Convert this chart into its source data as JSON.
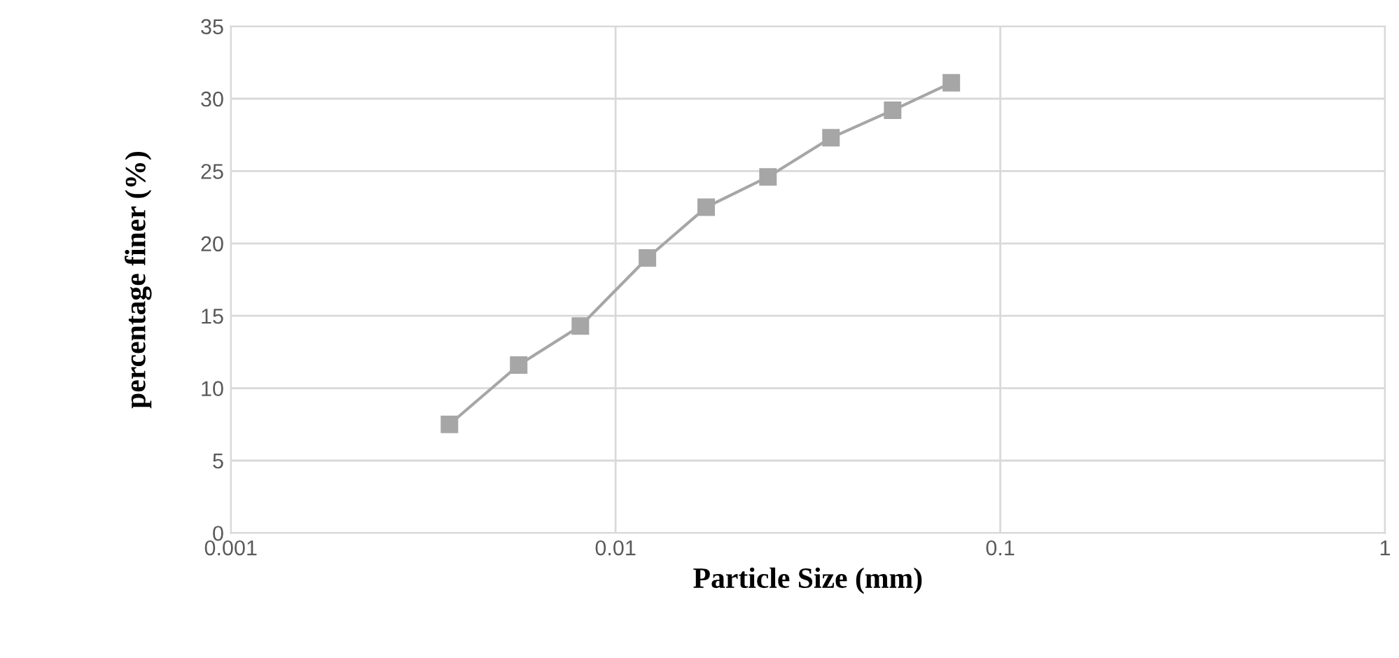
{
  "chart_data": {
    "type": "line",
    "xlabel": "Particle Size (mm)",
    "ylabel": "percentage finer (%)",
    "x": [
      0.0037,
      0.0056,
      0.0081,
      0.0121,
      0.0172,
      0.0249,
      0.0363,
      0.0525,
      0.0746
    ],
    "series": [
      {
        "color": "#a6a6a6",
        "values": [
          7.5,
          11.6,
          14.3,
          19.0,
          22.5,
          24.6,
          27.3,
          29.2,
          31.1
        ]
      }
    ],
    "log": "x",
    "xlim": [
      0.001,
      1
    ],
    "xticks": [
      0.001,
      0.01,
      0.1,
      1
    ],
    "ylim": [
      0,
      35
    ],
    "yticks": [
      0,
      5,
      10,
      15,
      20,
      25,
      30,
      35
    ],
    "grid": true,
    "marker": "square",
    "legend": false
  }
}
